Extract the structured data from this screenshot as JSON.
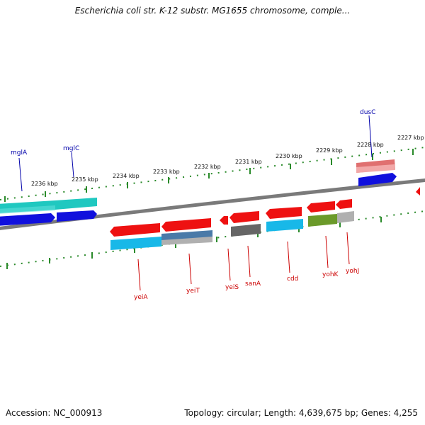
{
  "title": "Escherichia coli str. K-12 substr. MG1655 chromosome, comple...",
  "footer": {
    "accession": "Accession: NC_000913",
    "summary": "Topology: circular; Length: 4,639,675 bp; Genes: 4,255"
  },
  "scale_labels": [
    "2236 kbp",
    "2235 kbp",
    "2234 kbp",
    "2233 kbp",
    "2232 kbp",
    "2231 kbp",
    "2230 kbp",
    "2229 kbp",
    "2228 kbp",
    "2227 kbp"
  ],
  "genes_forward": [
    "mglA",
    "mglC",
    "dusC"
  ],
  "genes_reverse": [
    "yeiA",
    "yeiT",
    "yeiS",
    "sanA",
    "cdd",
    "yohK",
    "yohJ"
  ],
  "colors": {
    "forward_label": "#0000aa",
    "reverse_label": "#cc0000",
    "tick": "#2a8a2a",
    "backbone": "#808080",
    "gene_red": "#ee1111",
    "gene_blue": "#1010dd",
    "gene_cyan": "#18b8e8",
    "gene_teal": "#20c8c0",
    "gene_olive": "#6b9a2a",
    "gene_gray": "#777777",
    "gene_pink": "#e07070"
  }
}
